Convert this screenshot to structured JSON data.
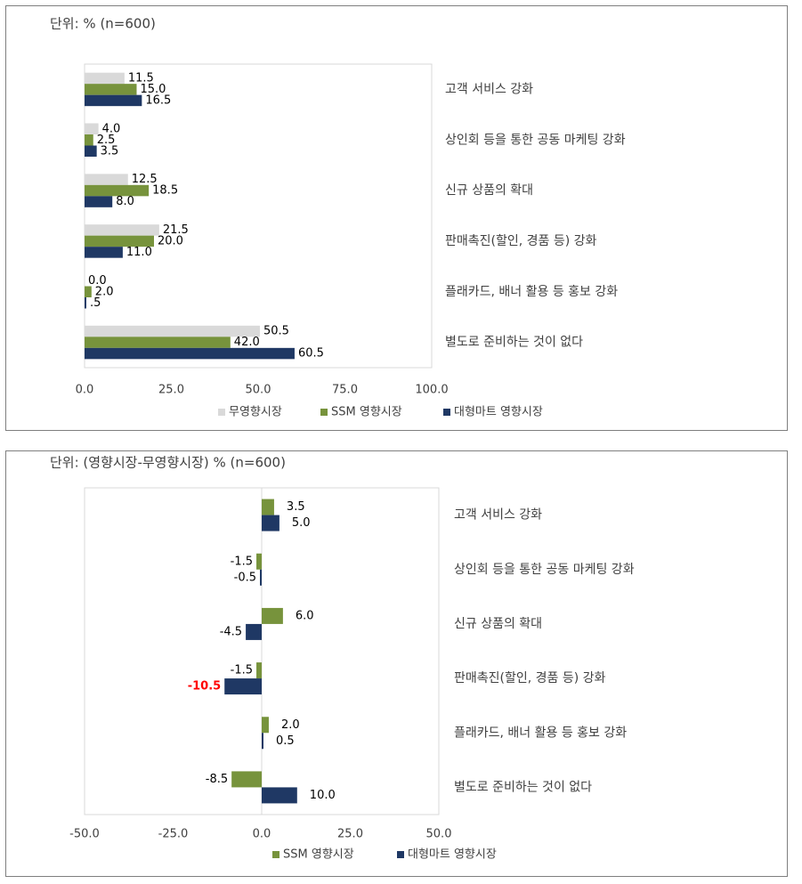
{
  "chart_data": [
    {
      "type": "bar",
      "orientation": "horizontal",
      "title": "단위: % (n=600)",
      "categories": [
        "고객 서비스 강화",
        "상인회 등을 통한 공동 마케팅 강화",
        "신규 상품의 확대",
        "판매촉진(할인, 경품 등) 강화",
        "플래카드, 배너 활용 등 홍보 강화",
        "별도로 준비하는 것이 없다"
      ],
      "series": [
        {
          "name": "무영향시장",
          "color": "#d9d9d9",
          "values": [
            11.5,
            4.0,
            12.5,
            21.5,
            0.0,
            50.5
          ],
          "value_labels": [
            "11.5",
            "4.0",
            "12.5",
            "21.5",
            "0.0",
            "50.5"
          ]
        },
        {
          "name": "SSM 영향시장",
          "color": "#77933c",
          "values": [
            15.0,
            2.5,
            18.5,
            20.0,
            2.0,
            42.0
          ],
          "value_labels": [
            "15.0",
            "2.5",
            "18.5",
            "20.0",
            "2.0",
            "42.0"
          ]
        },
        {
          "name": "대형마트 영향시장",
          "color": "#1f3864",
          "values": [
            16.5,
            3.5,
            8.0,
            11.0,
            0.5,
            60.5
          ],
          "value_labels": [
            "16.5",
            "3.5",
            "8.0",
            "11.0",
            ".5",
            "60.5"
          ]
        }
      ],
      "xlim": [
        0,
        100
      ],
      "xticks": [
        {
          "value": 0,
          "label": "0.0"
        },
        {
          "value": 25,
          "label": "25.0"
        },
        {
          "value": 50,
          "label": "50.0"
        },
        {
          "value": 75,
          "label": "75.0"
        },
        {
          "value": 100,
          "label": "100.0"
        }
      ]
    },
    {
      "type": "bar",
      "orientation": "horizontal",
      "title": "단위: (영향시장-무영향시장) % (n=600)",
      "categories": [
        "고객 서비스 강화",
        "상인회 등을 통한 공동 마케팅 강화",
        "신규 상품의 확대",
        "판매촉진(할인, 경품 등) 강화",
        "플래카드, 배너 활용 등 홍보 강화",
        "별도로 준비하는 것이 없다"
      ],
      "series": [
        {
          "name": "SSM 영향시장",
          "color": "#77933c",
          "values": [
            3.5,
            -1.5,
            6.0,
            -1.5,
            2.0,
            -8.5
          ],
          "value_labels": [
            "3.5",
            "-1.5",
            "6.0",
            "-1.5",
            "2.0",
            "-8.5"
          ]
        },
        {
          "name": "대형마트 영향시장",
          "color": "#1f3864",
          "values": [
            5.0,
            -0.5,
            -4.5,
            -10.5,
            0.5,
            10.0
          ],
          "value_labels": [
            "5.0",
            "-0.5",
            "-4.5",
            "-10.5",
            "0.5",
            "10.0"
          ],
          "label_colors": [
            "#000000",
            "#000000",
            "#000000",
            "#ff0000",
            "#000000",
            "#000000"
          ]
        }
      ],
      "xlim": [
        -50,
        50
      ],
      "xticks": [
        {
          "value": -50,
          "label": "-50.0"
        },
        {
          "value": -25,
          "label": "-25.0"
        },
        {
          "value": 0,
          "label": "0.0"
        },
        {
          "value": 25,
          "label": "25.0"
        },
        {
          "value": 50,
          "label": "50.0"
        }
      ]
    }
  ]
}
